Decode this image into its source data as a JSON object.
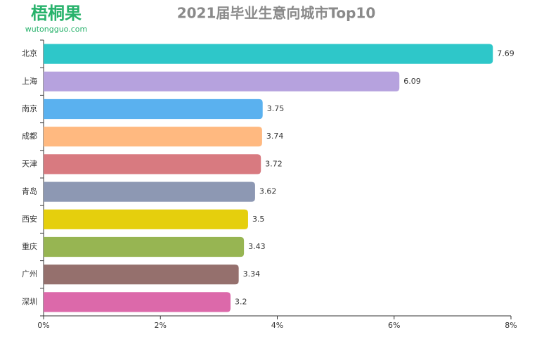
{
  "logo": {
    "name": "梧桐果",
    "url": "wutongguo.com"
  },
  "chart_data": {
    "type": "bar",
    "orientation": "horizontal",
    "title": "2021届毕业生意向城市Top10",
    "categories": [
      "北京",
      "上海",
      "南京",
      "成都",
      "天津",
      "青岛",
      "西安",
      "重庆",
      "广州",
      "深圳"
    ],
    "values": [
      7.69,
      6.09,
      3.75,
      3.74,
      3.72,
      3.62,
      3.5,
      3.43,
      3.34,
      3.2
    ],
    "colors": [
      "#2ec7c9",
      "#b6a2de",
      "#5ab1ef",
      "#ffb980",
      "#d87a80",
      "#8d98b3",
      "#e5cf0d",
      "#97b552",
      "#95706d",
      "#dc69aa"
    ],
    "xlim": [
      0,
      8
    ],
    "xticks": [
      {
        "value": 0,
        "label": "0%"
      },
      {
        "value": 2,
        "label": "2%"
      },
      {
        "value": 4,
        "label": "4%"
      },
      {
        "value": 6,
        "label": "6%"
      },
      {
        "value": 8,
        "label": "8%"
      }
    ],
    "grid": false
  }
}
